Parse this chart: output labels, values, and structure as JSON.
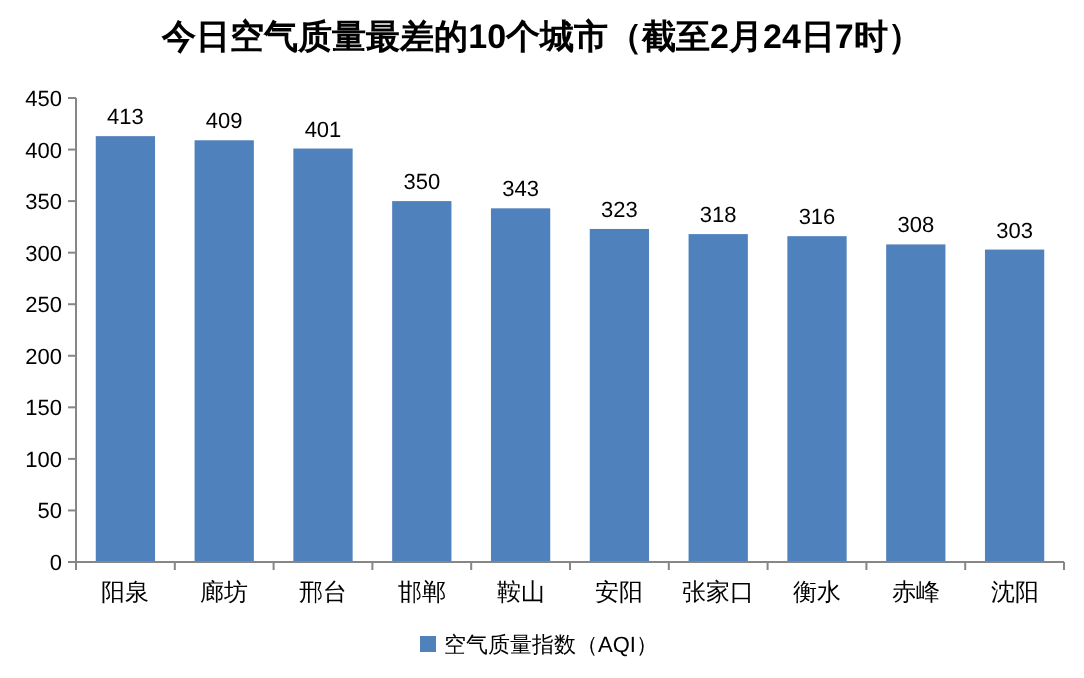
{
  "chart_data": {
    "type": "bar",
    "title": "今日空气质量最差的10个城市（截至2月24日7时）",
    "categories": [
      "阳泉",
      "廊坊",
      "邢台",
      "邯郸",
      "鞍山",
      "安阳",
      "张家口",
      "衡水",
      "赤峰",
      "沈阳"
    ],
    "series": [
      {
        "name": "空气质量指数（AQI）",
        "color": "#4f81bd",
        "values": [
          413,
          409,
          401,
          350,
          343,
          323,
          318,
          316,
          308,
          303
        ]
      }
    ],
    "ylim": [
      0,
      450
    ],
    "yticks": [
      0,
      50,
      100,
      150,
      200,
      250,
      300,
      350,
      400,
      450
    ],
    "data_labels": true,
    "grid": false,
    "legend": "bottom"
  }
}
